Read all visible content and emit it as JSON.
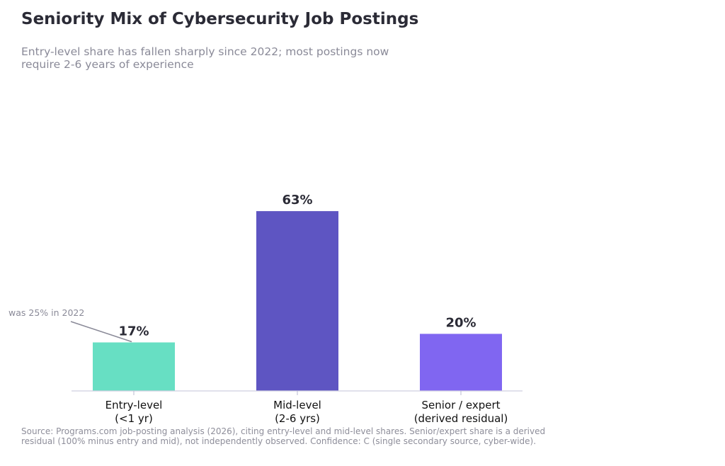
{
  "header": {
    "title": "Seniority Mix of Cybersecurity Job Postings",
    "subtitle": "Entry-level share has fallen sharply since 2022; most postings now require 2-6 years of experience"
  },
  "chart_data": {
    "type": "bar",
    "categories": [
      "Entry-level\n(<1 yr)",
      "Mid-level\n(2-6 yrs)",
      "Senior / expert\n(derived residual)"
    ],
    "values": [
      17,
      63,
      20
    ],
    "value_labels": [
      "17%",
      "63%",
      "20%"
    ],
    "colors": [
      "#67dfc3",
      "#5e55c2",
      "#8066f1"
    ],
    "ylim": [
      0,
      100
    ],
    "grid": false,
    "annotation": {
      "text": "was 25% in 2022",
      "category_index": 0
    }
  },
  "footer": {
    "source": "Source: Programs.com job-posting analysis (2026), citing entry-level and mid-level shares. Senior/expert share is a derived residual (100% minus entry and mid), not independently observed. Confidence: C (single secondary source, cyber-wide)."
  }
}
